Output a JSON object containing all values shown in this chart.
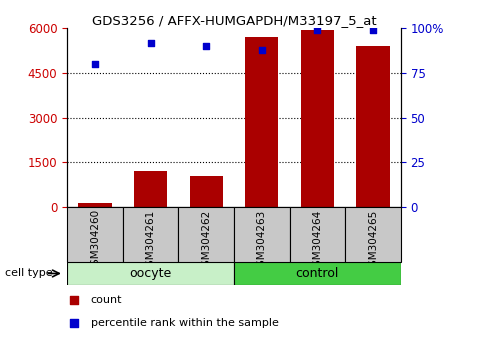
{
  "title": "GDS3256 / AFFX-HUMGAPDH/M33197_5_at",
  "samples": [
    "GSM304260",
    "GSM304261",
    "GSM304262",
    "GSM304263",
    "GSM304264",
    "GSM304265"
  ],
  "counts": [
    150,
    1200,
    1050,
    5700,
    5950,
    5400
  ],
  "percentiles": [
    80,
    92,
    90,
    88,
    99,
    99
  ],
  "groups": [
    {
      "label": "oocyte",
      "indices": [
        0,
        1,
        2
      ],
      "color": "#c8f0c8"
    },
    {
      "label": "control",
      "indices": [
        3,
        4,
        5
      ],
      "color": "#44cc44"
    }
  ],
  "bar_color": "#aa0000",
  "scatter_color": "#0000cc",
  "left_ylim": [
    0,
    6000
  ],
  "right_ylim": [
    0,
    100
  ],
  "left_yticks": [
    0,
    1500,
    3000,
    4500,
    6000
  ],
  "right_yticks": [
    0,
    25,
    50,
    75,
    100
  ],
  "left_ytick_labels": [
    "0",
    "1500",
    "3000",
    "4500",
    "6000"
  ],
  "right_ytick_labels": [
    "0",
    "25",
    "50",
    "75",
    "100%"
  ],
  "tick_label_color_left": "#cc0000",
  "tick_label_color_right": "#0000cc",
  "legend_items": [
    {
      "label": "count",
      "color": "#aa0000"
    },
    {
      "label": "percentile rank within the sample",
      "color": "#0000cc"
    }
  ],
  "cell_type_label": "cell type",
  "sample_box_color": "#c8c8c8",
  "background_color": "#ffffff"
}
